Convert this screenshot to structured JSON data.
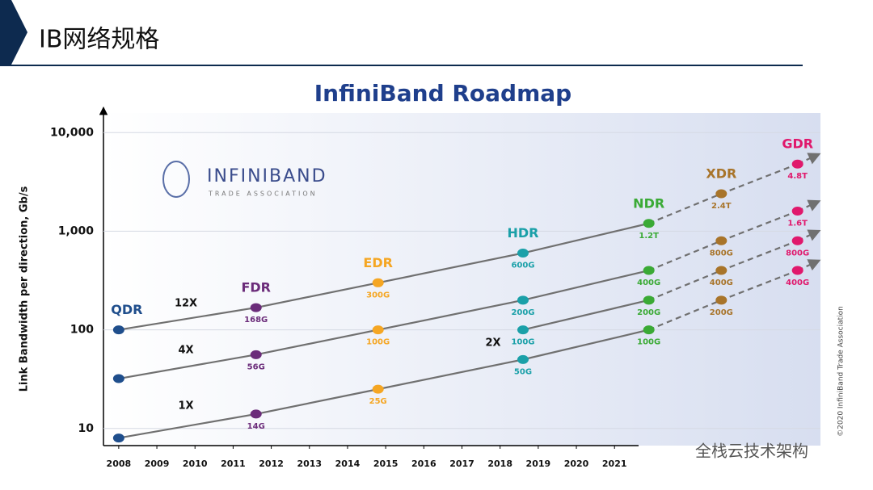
{
  "slide_title": "IB网络规格",
  "logo": {
    "name": "INFINIBAND",
    "subtitle": "TRADE ASSOCIATION"
  },
  "copyright": "©2020 InfiniBand Trade Association",
  "watermark": "全栈云技术架构",
  "chart_data": {
    "type": "line",
    "title": "InfiniBand Roadmap",
    "y_label": "Link Bandwidth per direction, Gb/s",
    "log_scale_y": true,
    "xlim": [
      2007.6,
      2026.4
    ],
    "xticks": [
      2008,
      2009,
      2010,
      2011,
      2012,
      2013,
      2014,
      2015,
      2016,
      2017,
      2018,
      2019,
      2020,
      2021
    ],
    "ylim": [
      6.7,
      15800
    ],
    "yticks": [
      10,
      100,
      {
        "value": 1000,
        "label": "1,000"
      },
      {
        "value": 10000,
        "label": "10,000"
      }
    ],
    "grid": true,
    "x": [
      2008,
      2011.6,
      2014.8,
      2018.6,
      2021.9,
      2023.8,
      2025.8
    ],
    "generations": [
      "QDR",
      "FDR",
      "EDR",
      "HDR",
      "NDR",
      "XDR",
      "GDR"
    ],
    "generation_colors": [
      "#1f4e8c",
      "#6b2c7a",
      "#f5a623",
      "#1aa0a8",
      "#3aaa35",
      "#a8742a",
      "#e0186c"
    ],
    "line_color": "#707070",
    "series": [
      {
        "name": "12X",
        "values": [
          100,
          168,
          300,
          600,
          1200,
          2400,
          4800
        ],
        "value_labels": [
          null,
          "168G",
          "300G",
          "600G",
          "1.2T",
          "2.4T",
          "4.8T"
        ]
      },
      {
        "name": "4X",
        "values": [
          32,
          56,
          100,
          200,
          400,
          800,
          1600
        ],
        "value_labels": [
          null,
          "56G",
          "100G",
          "200G",
          "400G",
          "800G",
          "1.6T"
        ]
      },
      {
        "name": "2X",
        "values": [
          null,
          null,
          null,
          100,
          200,
          400,
          800
        ],
        "value_labels": [
          null,
          null,
          null,
          "100G",
          "200G",
          "400G",
          "800G"
        ]
      },
      {
        "name": "1X",
        "values": [
          8,
          14,
          25,
          50,
          100,
          200,
          400
        ],
        "value_labels": [
          null,
          "14G",
          "25G",
          "50G",
          "100G",
          "200G",
          "400G"
        ]
      }
    ]
  }
}
